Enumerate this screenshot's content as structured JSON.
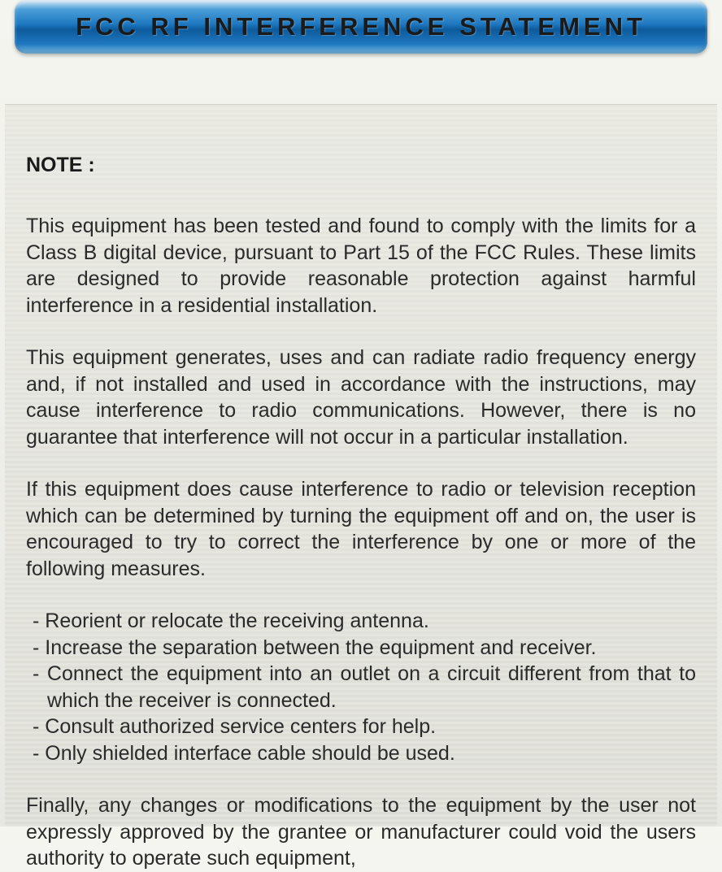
{
  "header": {
    "title": "FCC RF INTERFERENCE STATEMENT"
  },
  "content": {
    "note_label": "NOTE :",
    "paragraphs": {
      "p1": "This equipment has been tested and found to comply with the limits for a Class B digital device, pursuant to Part 15 of the FCC Rules. These limits are designed to provide reasonable protection against harmful interference in a residential installation.",
      "p2": "This equipment generates, uses and can radiate radio frequency energy and, if not installed and used in accordance with the instructions, may cause interference to radio communications. However, there is no guarantee that interference will not occur in a particular installation.",
      "p3": "If this equipment does cause interference to radio or television reception which can be determined by turning the equipment off and on, the user is encouraged to try to correct the interference by one or more of the following measures."
    },
    "bullets": [
      "Reorient or relocate the receiving antenna.",
      "Increase the separation between the equipment and receiver.",
      "Connect the equipment into an outlet on a circuit different from that to which the receiver is connected.",
      "Consult authorized service centers for help.",
      "Only shielded interface cable should be used."
    ],
    "final": "Finally, any changes or modifications to the equipment by the user not expressly approved by the grantee or manufacturer could void the users authority to operate such equipment,"
  },
  "style": {
    "header_gradient_top": "#d8e8f5",
    "header_gradient_mid": "#1e78c0",
    "header_gradient_bottom": "#0d5a9c",
    "body_bg_top": "#f5f5f0",
    "body_bg_bottom": "#e8e8e3",
    "text_color": "#2a2a2a",
    "title_fontsize": 31,
    "body_fontsize": 25,
    "title_letter_spacing": 5
  }
}
